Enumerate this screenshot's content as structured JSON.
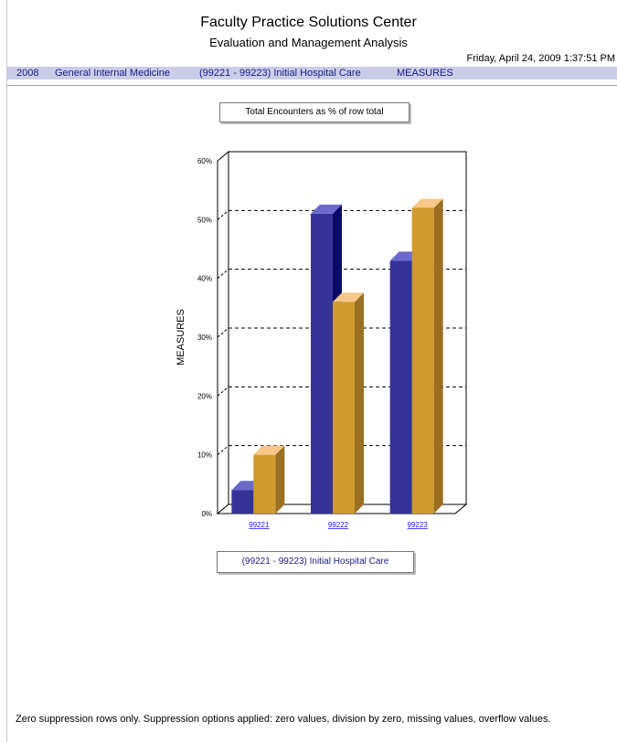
{
  "header": {
    "title": "Faculty Practice Solutions Center",
    "subtitle": "Evaluation and Management Analysis",
    "timestamp": "Friday, April 24, 2009 1:37:51 PM"
  },
  "breadcrumb": {
    "year": "2008",
    "specialty": "General Internal Medicine",
    "code_range": "(99221 - 99223) Initial Hospital Care",
    "measure": "MEASURES"
  },
  "chart_data": {
    "type": "bar",
    "title": "Total Encounters as % of row total",
    "xlabel": "(99221 - 99223) Initial Hospital Care",
    "ylabel": "MEASURES",
    "categories": [
      "99221",
      "99222",
      "99223"
    ],
    "series": [
      {
        "values": [
          4,
          51,
          43
        ],
        "color": "#33339a",
        "side": "#0a0a66",
        "top": "#6a6acc"
      },
      {
        "values": [
          10,
          36,
          52
        ],
        "color": "#cf9a2e",
        "side": "#9a6f22",
        "top": "#f8c789"
      }
    ],
    "ylim": [
      0,
      60
    ],
    "yticks": [
      "0%",
      "10%",
      "20%",
      "30%",
      "40%",
      "50%",
      "60%"
    ],
    "grid": "dashed"
  },
  "footnote": "Zero suppression rows only. Suppression options applied: zero values, division by zero, missing values, overflow values."
}
